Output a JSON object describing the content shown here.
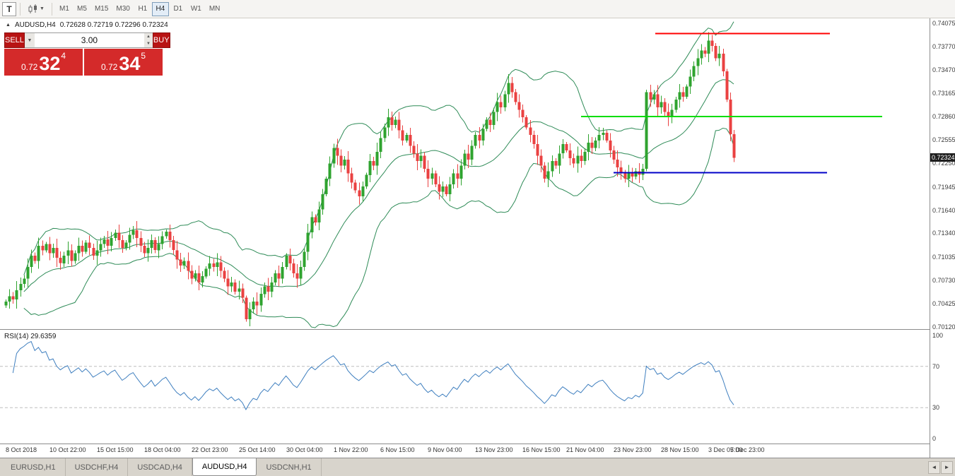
{
  "toolbar": {
    "tool_t_label": "T",
    "timeframes": [
      "M1",
      "M5",
      "M15",
      "M30",
      "H1",
      "H4",
      "D1",
      "W1",
      "MN"
    ],
    "active_timeframe": "H4"
  },
  "chart": {
    "symbol_title": "AUDUSD,H4",
    "ohlc_text": "0.72628 0.72719 0.72296 0.72324",
    "trade_panel": {
      "sell_label": "SELL",
      "buy_label": "BUY",
      "volume": "3.00",
      "sell_price": {
        "prefix": "0.72",
        "big": "32",
        "sup": "4"
      },
      "buy_price": {
        "prefix": "0.72",
        "big": "34",
        "sup": "5"
      }
    }
  },
  "rsi_panel": {
    "label": "RSI(14) 29.6359"
  },
  "tabs": {
    "items": [
      "EURUSD,H1",
      "USDCHF,H4",
      "USDCAD,H4",
      "AUDUSD,H4",
      "USDCNH,H1"
    ],
    "active": "AUDUSD,H4"
  },
  "icons": {
    "dropdown": "▼",
    "spin_up": "▲",
    "spin_down": "▼",
    "scroll_left": "◄",
    "scroll_right": "►",
    "title_arrow": "▲"
  },
  "chart_data": {
    "type": "candlestick",
    "symbol": "AUDUSD",
    "timeframe": "H4",
    "title": "AUDUSD,H4",
    "y_range": [
      0.7012,
      0.74075
    ],
    "price_axis_labels": [
      "0.74075",
      "0.73770",
      "0.73470",
      "0.73165",
      "0.72860",
      "0.72555",
      "0.72250",
      "0.71945",
      "0.71640",
      "0.71340",
      "0.71035",
      "0.70730",
      "0.70425",
      "0.70120"
    ],
    "bid_line_label": "0.72324",
    "first_open": 0.704,
    "last_candle": {
      "open": 0.72628,
      "high": 0.72719,
      "low": 0.72296,
      "close": 0.72324
    },
    "up_color": "#2fa32f",
    "down_color": "#ea4141",
    "closes": [
      0.7045,
      0.7052,
      0.7048,
      0.706,
      0.7068,
      0.7075,
      0.709,
      0.7105,
      0.7098,
      0.7118,
      0.7112,
      0.712,
      0.7108,
      0.7115,
      0.7102,
      0.7095,
      0.7105,
      0.7112,
      0.7098,
      0.7108,
      0.7118,
      0.711,
      0.7122,
      0.7115,
      0.7105,
      0.7112,
      0.712,
      0.7126,
      0.7118,
      0.7128,
      0.7135,
      0.7125,
      0.7115,
      0.7122,
      0.7132,
      0.7138,
      0.7128,
      0.7118,
      0.7108,
      0.7115,
      0.7125,
      0.7112,
      0.712,
      0.713,
      0.7136,
      0.7125,
      0.7112,
      0.71,
      0.7092,
      0.7098,
      0.7085,
      0.7075,
      0.7082,
      0.707,
      0.7078,
      0.7088,
      0.7095,
      0.709,
      0.7096,
      0.7085,
      0.7075,
      0.7065,
      0.707,
      0.7058,
      0.7062,
      0.705,
      0.7022,
      0.7035,
      0.7045,
      0.704,
      0.7055,
      0.7065,
      0.7058,
      0.707,
      0.7082,
      0.7075,
      0.709,
      0.7105,
      0.7095,
      0.7082,
      0.7075,
      0.709,
      0.711,
      0.7135,
      0.7155,
      0.7148,
      0.7165,
      0.7185,
      0.7205,
      0.7225,
      0.7245,
      0.7235,
      0.7222,
      0.723,
      0.7212,
      0.72,
      0.719,
      0.7182,
      0.7195,
      0.721,
      0.7228,
      0.7222,
      0.724,
      0.7258,
      0.7272,
      0.7285,
      0.7275,
      0.7282,
      0.7268,
      0.7255,
      0.7262,
      0.7248,
      0.7238,
      0.7228,
      0.7235,
      0.7218,
      0.7205,
      0.7212,
      0.7198,
      0.7188,
      0.7195,
      0.7185,
      0.7198,
      0.7212,
      0.7205,
      0.7222,
      0.7238,
      0.723,
      0.7248,
      0.7262,
      0.7255,
      0.727,
      0.7282,
      0.7275,
      0.7292,
      0.7305,
      0.7298,
      0.7315,
      0.733,
      0.7318,
      0.7305,
      0.7295,
      0.7285,
      0.7272,
      0.7262,
      0.725,
      0.7235,
      0.7222,
      0.7205,
      0.7215,
      0.7228,
      0.7222,
      0.7238,
      0.725,
      0.7242,
      0.7232,
      0.7225,
      0.7235,
      0.7228,
      0.724,
      0.7252,
      0.7245,
      0.7255,
      0.7262,
      0.7265,
      0.7255,
      0.7242,
      0.723,
      0.722,
      0.7212,
      0.7205,
      0.7212,
      0.7208,
      0.7215,
      0.721,
      0.7218,
      0.7318,
      0.7308,
      0.7315,
      0.7298,
      0.7305,
      0.7292,
      0.7285,
      0.7295,
      0.7308,
      0.7318,
      0.7312,
      0.7325,
      0.7338,
      0.7352,
      0.7362,
      0.7372,
      0.7368,
      0.7385,
      0.7378,
      0.7362,
      0.7368,
      0.7345,
      0.7308,
      0.7263,
      0.72324
    ],
    "indicators": {
      "bollinger": {
        "period": 20,
        "deviations": 2,
        "color": "#2e8b57"
      },
      "rsi": {
        "period": 14,
        "value": 29.6359,
        "color": "#3f7fbf",
        "levels": [
          70,
          30
        ],
        "range": [
          0,
          100
        ],
        "axis_labels": [
          "100",
          "70",
          "30",
          "0"
        ]
      }
    },
    "hlines": [
      {
        "price": 0.7394,
        "color": "#ff0000",
        "from": 0.705,
        "to": 0.893,
        "width": 2
      },
      {
        "price": 0.7286,
        "color": "#00dd00",
        "from": 0.625,
        "to": 0.949,
        "width": 2
      },
      {
        "price": 0.7213,
        "color": "#0000c8",
        "from": 0.66,
        "to": 0.89,
        "width": 2
      }
    ],
    "x_labels": [
      {
        "label": "8 Oct 2018",
        "i": 0
      },
      {
        "label": "10 Oct 22:00",
        "i": 12
      },
      {
        "label": "15 Oct 15:00",
        "i": 25
      },
      {
        "label": "18 Oct 04:00",
        "i": 38
      },
      {
        "label": "22 Oct 23:00",
        "i": 51
      },
      {
        "label": "25 Oct 14:00",
        "i": 64
      },
      {
        "label": "30 Oct 04:00",
        "i": 77
      },
      {
        "label": "1 Nov 22:00",
        "i": 90
      },
      {
        "label": "6 Nov 15:00",
        "i": 103
      },
      {
        "label": "9 Nov 04:00",
        "i": 116
      },
      {
        "label": "13 Nov 23:00",
        "i": 129
      },
      {
        "label": "16 Nov 15:00",
        "i": 142
      },
      {
        "label": "21 Nov 04:00",
        "i": 154
      },
      {
        "label": "23 Nov 23:00",
        "i": 167
      },
      {
        "label": "28 Nov 15:00",
        "i": 180
      },
      {
        "label": "3 Dec 07:00",
        "i": 193
      },
      {
        "label": "5 Dec 23:00",
        "i": 199
      }
    ]
  }
}
